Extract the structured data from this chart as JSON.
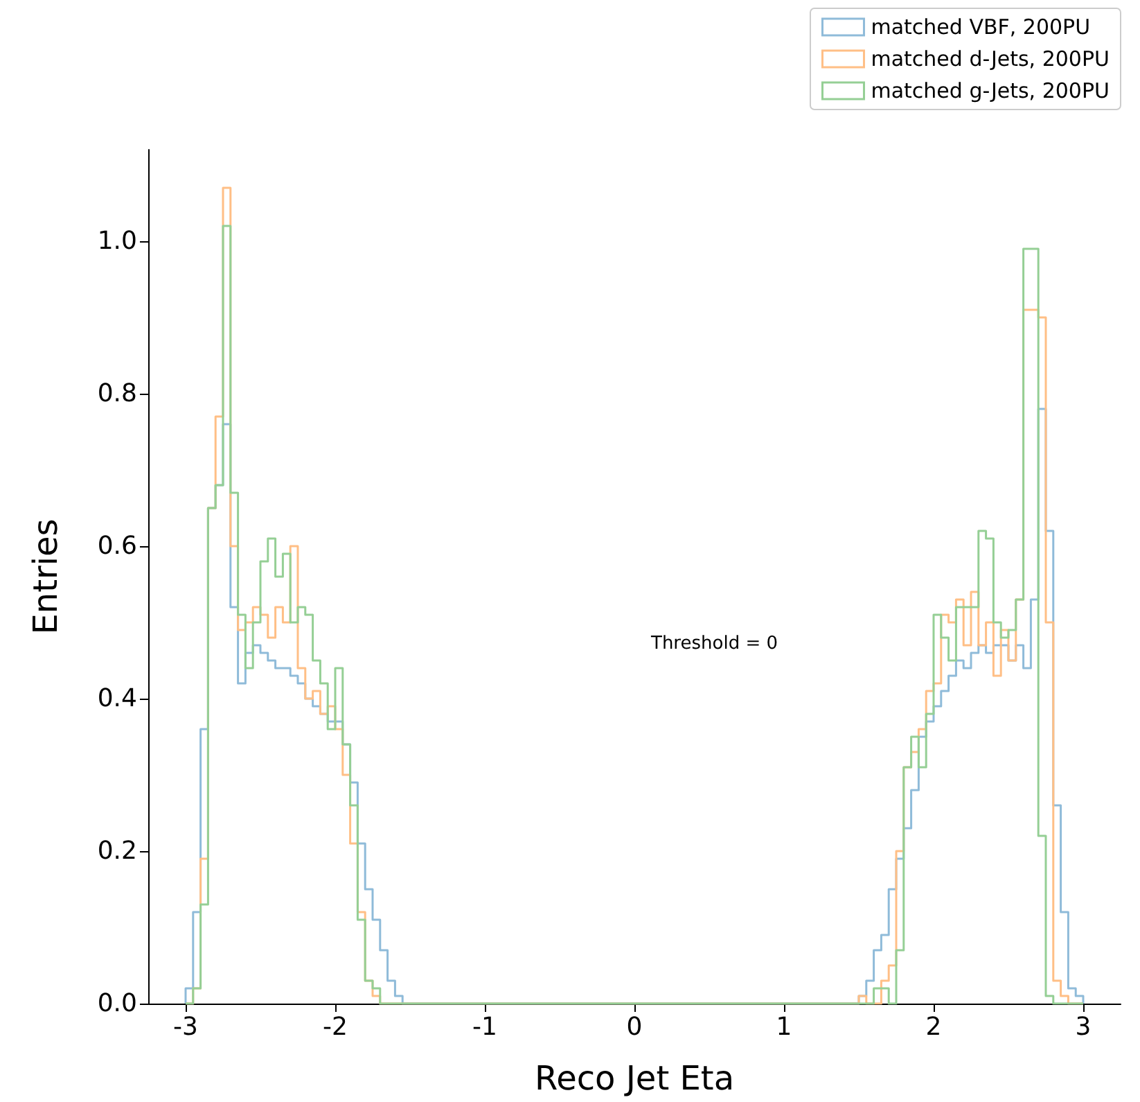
{
  "chart_data": {
    "type": "histogram",
    "xlabel": "Reco Jet Eta",
    "ylabel": "Entries",
    "bins": [
      -3,
      -2.95,
      -2.9,
      -2.85,
      -2.8,
      -2.75,
      -2.7,
      -2.65,
      -2.6,
      -2.55,
      -2.5,
      -2.45,
      -2.4,
      -2.35,
      -2.3,
      -2.25,
      -2.2,
      -2.15,
      -2.1,
      -2.05,
      -2,
      -1.95,
      -1.9,
      -1.85,
      -1.8,
      -1.75,
      -1.7,
      -1.65,
      -1.6,
      -1.55,
      -1.5,
      -1.45,
      -1.4,
      -1.35,
      -1.3,
      -1.25,
      -1.2,
      -1.15,
      -1.1,
      -1.05,
      -1,
      -0.95,
      -0.9,
      -0.85,
      -0.8,
      -0.75,
      -0.7,
      -0.65,
      -0.6,
      -0.55,
      -0.5,
      -0.45,
      -0.4,
      -0.35,
      -0.3,
      -0.25,
      -0.2,
      -0.15,
      -0.1,
      -0.05,
      0,
      0.05,
      0.1,
      0.15,
      0.2,
      0.25,
      0.3,
      0.35,
      0.4,
      0.45,
      0.5,
      0.55,
      0.6,
      0.65,
      0.7,
      0.75,
      0.8,
      0.85,
      0.9,
      0.95,
      1,
      1.05,
      1.1,
      1.15,
      1.2,
      1.25,
      1.3,
      1.35,
      1.4,
      1.45,
      1.5,
      1.55,
      1.6,
      1.65,
      1.7,
      1.75,
      1.8,
      1.85,
      1.9,
      1.95,
      2,
      2.05,
      2.1,
      2.15,
      2.2,
      2.25,
      2.3,
      2.35,
      2.4,
      2.45,
      2.5,
      2.55,
      2.6,
      2.65,
      2.7,
      2.75,
      2.8,
      2.85,
      2.9,
      2.95,
      3
    ],
    "series": [
      {
        "name": "matched VBF, 200PU",
        "color": "#8fbbd9",
        "values": [
          0.02,
          0.12,
          0.36,
          0.65,
          0.68,
          0.76,
          0.52,
          0.42,
          0.46,
          0.47,
          0.46,
          0.45,
          0.44,
          0.44,
          0.43,
          0.42,
          0.4,
          0.39,
          0.38,
          0.37,
          0.37,
          0.34,
          0.29,
          0.21,
          0.15,
          0.11,
          0.07,
          0.03,
          0.01,
          0,
          0,
          0,
          0,
          0,
          0,
          0,
          0,
          0,
          0,
          0,
          0,
          0,
          0,
          0,
          0,
          0,
          0,
          0,
          0,
          0,
          0,
          0,
          0,
          0,
          0,
          0,
          0,
          0,
          0,
          0,
          0,
          0,
          0,
          0,
          0,
          0,
          0,
          0,
          0,
          0,
          0,
          0,
          0,
          0,
          0,
          0,
          0,
          0,
          0,
          0,
          0,
          0,
          0,
          0,
          0,
          0,
          0,
          0,
          0,
          0,
          0.01,
          0.03,
          0.07,
          0.09,
          0.15,
          0.19,
          0.23,
          0.28,
          0.35,
          0.37,
          0.39,
          0.41,
          0.43,
          0.45,
          0.44,
          0.46,
          0.47,
          0.46,
          0.47,
          0.47,
          0.45,
          0.47,
          0.44,
          0.53,
          0.78,
          0.62,
          0.26,
          0.12,
          0.02,
          0.01
        ]
      },
      {
        "name": "matched d-Jets, 200PU",
        "color": "#ffbf86",
        "values": [
          0,
          0.02,
          0.19,
          0.65,
          0.77,
          1.07,
          0.6,
          0.49,
          0.5,
          0.52,
          0.51,
          0.48,
          0.52,
          0.5,
          0.6,
          0.44,
          0.4,
          0.41,
          0.38,
          0.39,
          0.36,
          0.3,
          0.21,
          0.12,
          0.03,
          0.01,
          0,
          0,
          0,
          0,
          0,
          0,
          0,
          0,
          0,
          0,
          0,
          0,
          0,
          0,
          0,
          0,
          0,
          0,
          0,
          0,
          0,
          0,
          0,
          0,
          0,
          0,
          0,
          0,
          0,
          0,
          0,
          0,
          0,
          0,
          0,
          0,
          0,
          0,
          0,
          0,
          0,
          0,
          0,
          0,
          0,
          0,
          0,
          0,
          0,
          0,
          0,
          0,
          0,
          0,
          0,
          0,
          0,
          0,
          0,
          0,
          0,
          0,
          0,
          0,
          0.01,
          0,
          0,
          0.03,
          0.05,
          0.2,
          0.31,
          0.33,
          0.36,
          0.41,
          0.42,
          0.51,
          0.5,
          0.53,
          0.47,
          0.54,
          0.47,
          0.5,
          0.43,
          0.49,
          0.45,
          0.53,
          0.91,
          0.91,
          0.9,
          0.5,
          0.03,
          0.01,
          0,
          0
        ]
      },
      {
        "name": "matched g-Jets, 200PU",
        "color": "#95cf95",
        "values": [
          0,
          0.02,
          0.13,
          0.65,
          0.68,
          1.02,
          0.67,
          0.51,
          0.44,
          0.5,
          0.58,
          0.61,
          0.56,
          0.59,
          0.5,
          0.52,
          0.51,
          0.45,
          0.42,
          0.36,
          0.44,
          0.34,
          0.26,
          0.11,
          0.03,
          0.02,
          0,
          0,
          0,
          0,
          0,
          0,
          0,
          0,
          0,
          0,
          0,
          0,
          0,
          0,
          0,
          0,
          0,
          0,
          0,
          0,
          0,
          0,
          0,
          0,
          0,
          0,
          0,
          0,
          0,
          0,
          0,
          0,
          0,
          0,
          0,
          0,
          0,
          0,
          0,
          0,
          0,
          0,
          0,
          0,
          0,
          0,
          0,
          0,
          0,
          0,
          0,
          0,
          0,
          0,
          0,
          0,
          0,
          0,
          0,
          0,
          0,
          0,
          0,
          0,
          0,
          0,
          0.02,
          0.02,
          0,
          0.07,
          0.31,
          0.35,
          0.31,
          0.38,
          0.51,
          0.48,
          0.45,
          0.52,
          0.52,
          0.52,
          0.62,
          0.61,
          0.5,
          0.48,
          0.49,
          0.53,
          0.99,
          0.99,
          0.22,
          0.01,
          0,
          0,
          0,
          0
        ]
      }
    ],
    "xlim": [
      -3.25,
      3.25
    ],
    "xticks": [
      -3,
      -2,
      -1,
      0,
      1,
      2,
      3
    ],
    "ylim": [
      0,
      1.12
    ],
    "yticks": [
      {
        "value": 0,
        "label": "0.0"
      },
      0.2,
      0.4,
      0.6,
      0.8,
      {
        "value": 1,
        "label": "1.0"
      }
    ],
    "annotations": [
      "Threshold = 0"
    ],
    "legend": "top right",
    "grid": false
  }
}
